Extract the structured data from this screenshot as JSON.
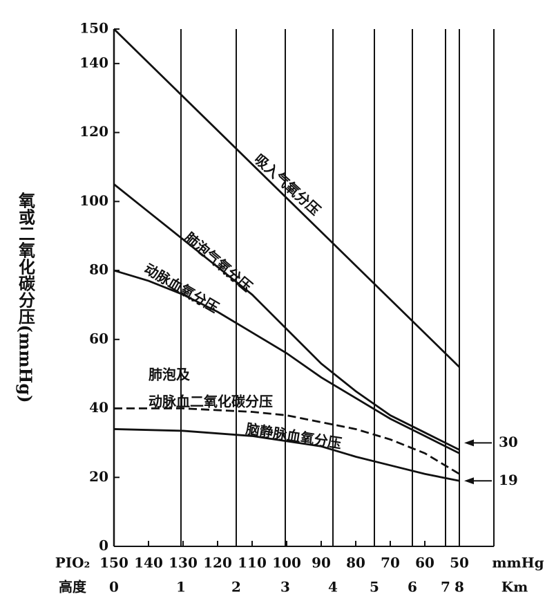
{
  "chart_data": {
    "type": "line",
    "ylabel": "氧或二氧化碳分压(mmHg)",
    "x_row_label": "PIO₂",
    "x_unit": "mmHg",
    "alt_row_label": "高度",
    "alt_unit": "Km",
    "xlim": [
      150,
      40
    ],
    "ylim": [
      0,
      150
    ],
    "xticks": [
      150,
      140,
      130,
      120,
      110,
      100,
      90,
      80,
      70,
      60,
      50
    ],
    "yticks": [
      0,
      20,
      40,
      60,
      80,
      100,
      120,
      140,
      150
    ],
    "alt_ticks": [
      {
        "value": 150,
        "label": "0"
      },
      {
        "value": 130.6,
        "label": "1"
      },
      {
        "value": 114.6,
        "label": "2"
      },
      {
        "value": 100.4,
        "label": "3"
      },
      {
        "value": 86.6,
        "label": "4"
      },
      {
        "value": 74.6,
        "label": "5"
      },
      {
        "value": 63.6,
        "label": "6"
      },
      {
        "value": 54,
        "label": "7"
      },
      {
        "value": 50,
        "label": "8"
      }
    ],
    "series": [
      {
        "name": "吸入气氧分压",
        "color": "#111",
        "x": [
          150,
          50
        ],
        "values": [
          150,
          52
        ]
      },
      {
        "name": "肺泡气氧分压",
        "color": "#111",
        "x": [
          150,
          140,
          130,
          120,
          110,
          100,
          90,
          80,
          70,
          60,
          50
        ],
        "values": [
          105,
          97,
          89,
          81,
          73,
          63,
          53,
          45,
          38,
          33,
          28
        ]
      },
      {
        "name": "动脉血氧分压",
        "color": "#111",
        "x": [
          150,
          140,
          130,
          120,
          110,
          100,
          90,
          80,
          70,
          60,
          50
        ],
        "values": [
          80,
          77,
          73,
          68,
          62,
          56,
          49,
          43,
          37,
          32,
          27
        ]
      },
      {
        "name": "动脉血二氧化碳分压",
        "color": "#111",
        "dashed": true,
        "x": [
          150,
          130,
          110,
          100,
          90,
          80,
          70,
          60,
          50
        ],
        "values": [
          40,
          40,
          39,
          38,
          36,
          34,
          31,
          27,
          21
        ]
      },
      {
        "name": "脑静脉血氧分压",
        "color": "#111",
        "x": [
          150,
          130,
          110,
          100,
          90,
          80,
          70,
          60,
          50
        ],
        "values": [
          34,
          33.5,
          32,
          30.5,
          29,
          26,
          23.5,
          21,
          19
        ]
      }
    ],
    "annotations": [
      "肺泡及"
    ],
    "callouts": [
      30,
      19
    ]
  }
}
